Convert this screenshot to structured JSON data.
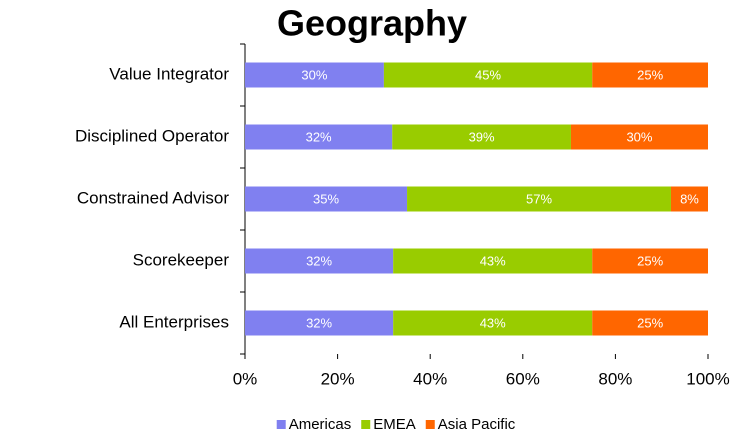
{
  "chart_data": {
    "type": "stacked-barh",
    "title": "Geography",
    "categories": [
      "Value Integrator",
      "Disciplined Operator",
      "Constrained Advisor",
      "Scorekeeper",
      "All Enterprises"
    ],
    "series": [
      {
        "name": "Americas",
        "color": "#8080f0",
        "values": [
          30,
          31.8,
          35,
          32,
          32
        ],
        "value_labels": [
          "30%",
          "32%",
          "35%",
          "32%",
          "32%"
        ]
      },
      {
        "name": "EMEA",
        "color": "#99cc00",
        "values": [
          45,
          38.6,
          57,
          43,
          43
        ],
        "value_labels": [
          "45%",
          "39%",
          "57%",
          "43%",
          "43%"
        ]
      },
      {
        "name": "Asia Pacific",
        "color": "#ff6600",
        "values": [
          25,
          29.6,
          8,
          25,
          25
        ],
        "value_labels": [
          "25%",
          "30%",
          "8%",
          "25%",
          "25%"
        ]
      }
    ],
    "xlim": [
      0,
      100
    ],
    "xticks": [
      {
        "value": 0,
        "label": "0%"
      },
      {
        "value": 20,
        "label": "20%"
      },
      {
        "value": 40,
        "label": "40%"
      },
      {
        "value": 60,
        "label": "60%"
      },
      {
        "value": 80,
        "label": "80%"
      },
      {
        "value": 100,
        "label": "100%"
      }
    ],
    "legend": "bottom"
  }
}
